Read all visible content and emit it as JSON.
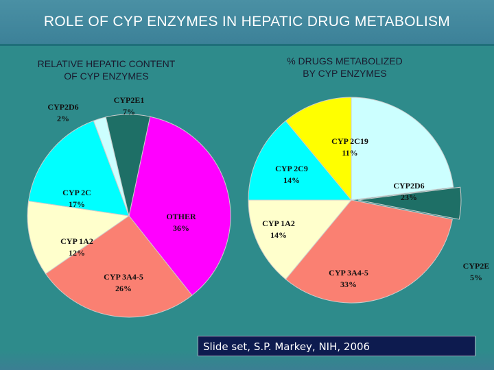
{
  "title": "ROLE OF CYP ENZYMES IN HEPATIC DRUG METABOLISM",
  "credit": "Slide set, S.P. Markey, NIH, 2006",
  "chart_data": [
    {
      "type": "pie",
      "title_lines": [
        "RELATIVE HEPATIC CONTENT",
        "OF CYP ENZYMES"
      ],
      "slices": [
        {
          "label": "OTHER",
          "value": 36,
          "display": "36%",
          "color": "#ff00ff"
        },
        {
          "label": "CYP 3A4-5",
          "value": 26,
          "display": "26%",
          "color": "#fa8072"
        },
        {
          "label": "CYP 1A2",
          "value": 12,
          "display": "12%",
          "color": "#ffffcc"
        },
        {
          "label": "CYP 2C",
          "value": 17,
          "display": "17%",
          "color": "#00ffff"
        },
        {
          "label": "CYP2D6",
          "value": 2,
          "display": "2%",
          "color": "#ccffff"
        },
        {
          "label": "CYP2E1",
          "value": 7,
          "display": "7%",
          "color": "#1e6f66"
        }
      ]
    },
    {
      "type": "pie",
      "title_lines": [
        "% DRUGS METABOLIZED",
        "BY CYP ENZYMES"
      ],
      "slices": [
        {
          "label": "CYP2D6",
          "value": 23,
          "display": "23%",
          "color": "#ccffff"
        },
        {
          "label": "CYP2E",
          "value": 5,
          "display": "5%",
          "color": "#1e6f66"
        },
        {
          "label": "CYP 3A4-5",
          "value": 33,
          "display": "33%",
          "color": "#fa8072"
        },
        {
          "label": "CYP 1A2",
          "value": 14,
          "display": "14%",
          "color": "#ffffcc"
        },
        {
          "label": "CYP 2C9",
          "value": 14,
          "display": "14%",
          "color": "#00ffff"
        },
        {
          "label": "CYP 2C19",
          "value": 11,
          "display": "11%",
          "color": "#ffff00"
        }
      ]
    }
  ]
}
